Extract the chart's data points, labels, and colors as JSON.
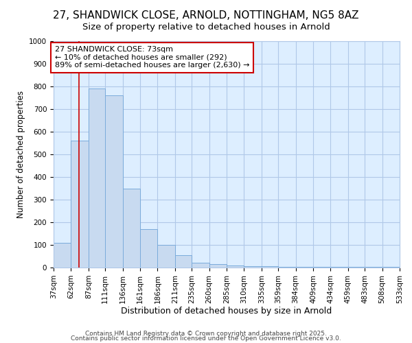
{
  "title1": "27, SHANDWICK CLOSE, ARNOLD, NOTTINGHAM, NG5 8AZ",
  "title2": "Size of property relative to detached houses in Arnold",
  "xlabel": "Distribution of detached houses by size in Arnold",
  "ylabel": "Number of detached properties",
  "bin_edges": [
    37,
    62,
    87,
    111,
    136,
    161,
    186,
    211,
    235,
    260,
    285,
    310,
    335,
    359,
    384,
    409,
    434,
    459,
    483,
    508,
    533
  ],
  "bar_heights": [
    110,
    560,
    790,
    760,
    350,
    170,
    100,
    55,
    20,
    15,
    10,
    5,
    5,
    2,
    2,
    2,
    2,
    2,
    2,
    2
  ],
  "bar_color": "#c8daf0",
  "bar_edge_color": "#7aabdb",
  "property_line_x": 73,
  "property_line_color": "#cc0000",
  "ylim": [
    0,
    1000
  ],
  "yticks": [
    0,
    100,
    200,
    300,
    400,
    500,
    600,
    700,
    800,
    900,
    1000
  ],
  "annotation_text": "27 SHANDWICK CLOSE: 73sqm\n← 10% of detached houses are smaller (292)\n89% of semi-detached houses are larger (2,630) →",
  "annotation_box_facecolor": "#ffffff",
  "annotation_box_edgecolor": "#cc0000",
  "footer_text1": "Contains HM Land Registry data © Crown copyright and database right 2025.",
  "footer_text2": "Contains public sector information licensed under the Open Government Licence v3.0.",
  "plot_bg_color": "#ddeeff",
  "fig_bg_color": "#ffffff",
  "grid_color": "#b0c8e8",
  "title1_fontsize": 11,
  "title2_fontsize": 9.5,
  "xlabel_fontsize": 9,
  "ylabel_fontsize": 8.5,
  "tick_fontsize": 7.5,
  "annotation_fontsize": 8,
  "footer_fontsize": 6.5
}
